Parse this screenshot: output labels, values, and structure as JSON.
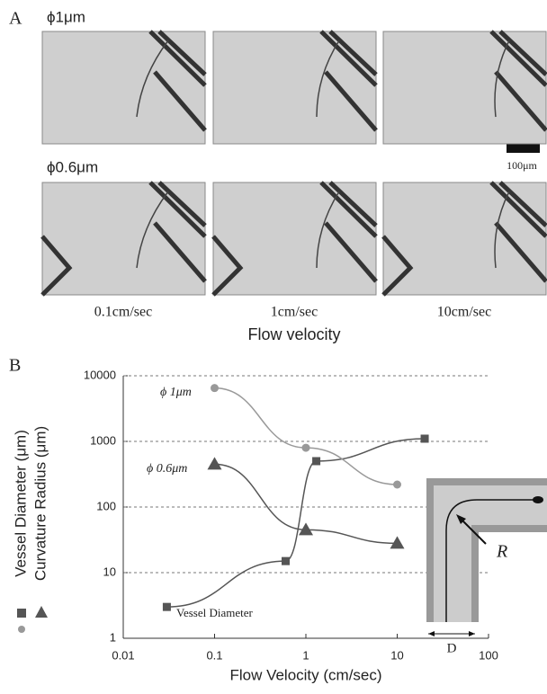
{
  "panel_a": {
    "label": "A",
    "rows": [
      "ϕ1μm",
      "ϕ0.6μm"
    ],
    "scale_bar": "100μm",
    "columns": [
      "0.1cm/sec",
      "1cm/sec",
      "10cm/sec"
    ],
    "axis_label": "Flow velocity"
  },
  "chart_data": {
    "type": "line",
    "panel_label": "B",
    "x_label": "Flow Velocity (cm/sec)",
    "y_labels": [
      "Vessel Diameter (μm)",
      "Curvature Radius (μm)"
    ],
    "log_x": true,
    "log_y": true,
    "grid": true,
    "xlim": [
      0.01,
      100
    ],
    "xticks": [
      0.01,
      0.1,
      1,
      10,
      100
    ],
    "ylim": [
      1,
      10000
    ],
    "yticks": [
      1,
      10,
      100,
      1000,
      10000
    ],
    "series": [
      {
        "name": "Vessel Diameter",
        "color": "#555555",
        "marker": "square",
        "x": [
          0.03,
          0.6,
          1.3,
          20
        ],
        "values": [
          3,
          15,
          500,
          1100
        ]
      },
      {
        "name": "ϕ 1μm",
        "color": "#999999",
        "marker": "circle",
        "x": [
          0.1,
          1,
          10
        ],
        "values": [
          6500,
          800,
          220
        ]
      },
      {
        "name": "ϕ 0.6μm",
        "color": "#555555",
        "marker": "triangle",
        "x": [
          0.1,
          1,
          10
        ],
        "values": [
          450,
          45,
          28
        ]
      }
    ],
    "inset": {
      "radius_label": "R",
      "diameter_label": "D"
    }
  }
}
